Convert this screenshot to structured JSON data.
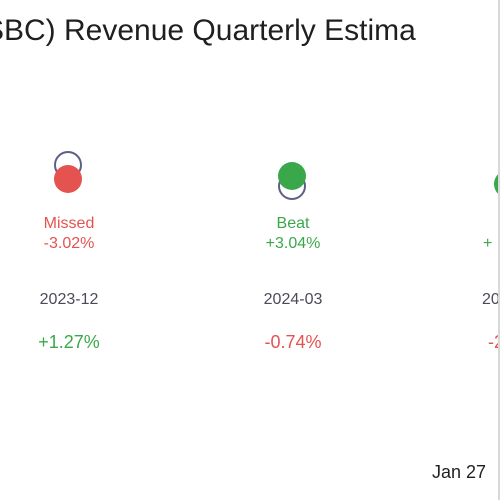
{
  "chart_data": {
    "type": "scatter",
    "title": "SBC) Revenue Quarterly Estima",
    "quarters": [
      {
        "period": "2023-12",
        "result": "Missed",
        "surprise": "-3.02%",
        "change": "+1.27%",
        "result_color": "#e4534f",
        "change_color": "#3aa84a"
      },
      {
        "period": "2024-03",
        "result": "Beat",
        "surprise": "+3.04%",
        "change": "-0.74%",
        "result_color": "#3aa84a",
        "change_color": "#e4534f"
      },
      {
        "period": "20",
        "result": "",
        "surprise": "+",
        "change": "-2",
        "result_color": "#3aa84a",
        "change_color": "#e4534f"
      }
    ]
  },
  "footer": {
    "date": "Jan 27"
  }
}
